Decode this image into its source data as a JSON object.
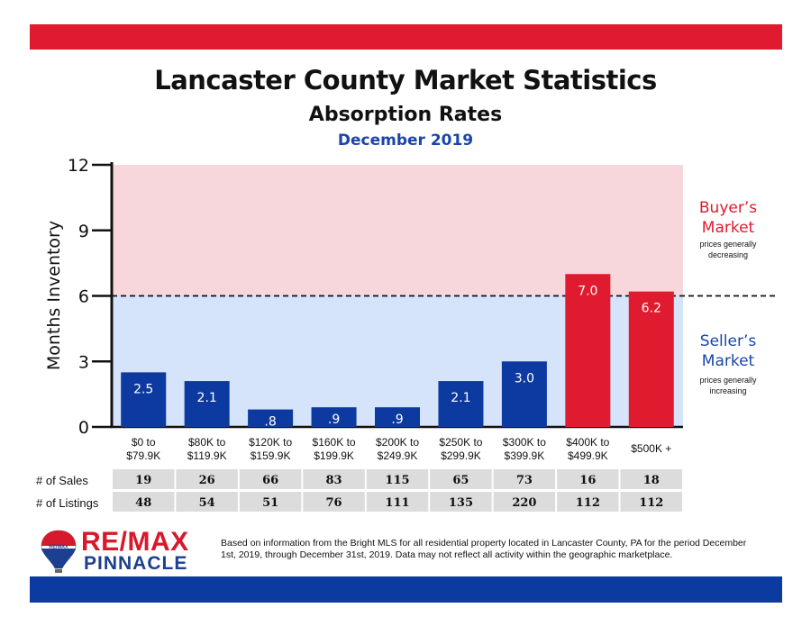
{
  "header": {
    "title": "Lancaster County Market Statistics",
    "subtitle": "Absorption Rates",
    "date": "December 2019"
  },
  "colors": {
    "brand_red": "#e01b2f",
    "brand_blue": "#0b3ba1",
    "buyers_zone": "#f8d7dc",
    "sellers_zone": "#d5e3fb",
    "bar_blue": "#0d3aa0",
    "bar_red": "#e01b2f"
  },
  "chart_data": {
    "type": "bar",
    "ylabel": "Months Inventory",
    "ylim": [
      0,
      12
    ],
    "yticks": [
      "0",
      "3",
      "6",
      "9",
      "12"
    ],
    "threshold": 6,
    "categories": [
      [
        "$0 to",
        "$79.9K"
      ],
      [
        "$80K to",
        "$119.9K"
      ],
      [
        "$120K to",
        "$159.9K"
      ],
      [
        "$160K to",
        "$199.9K"
      ],
      [
        "$200K to",
        "$249.9K"
      ],
      [
        "$250K to",
        "$299.9K"
      ],
      [
        "$300K to",
        "$399.9K"
      ],
      [
        "$400K to",
        "$499.9K"
      ],
      [
        "$500K +"
      ]
    ],
    "values": [
      2.5,
      2.1,
      0.8,
      0.9,
      0.9,
      2.1,
      3.0,
      7.0,
      6.2
    ],
    "value_labels": [
      "2.5",
      "2.1",
      ".8",
      ".9",
      ".9",
      "2.1",
      "3.0",
      "7.0",
      "6.2"
    ],
    "zones": {
      "buyers": {
        "title": [
          "Buyer’s",
          "Market"
        ],
        "note": [
          "prices generally",
          "decreasing"
        ]
      },
      "sellers": {
        "title": [
          "Seller’s",
          "Market"
        ],
        "note": [
          "prices generally",
          "increasing"
        ]
      }
    }
  },
  "stats": {
    "sales_label": "# of Sales",
    "listings_label": "# of Listings",
    "sales": [
      "19",
      "26",
      "66",
      "83",
      "115",
      "65",
      "73",
      "16",
      "18"
    ],
    "listings": [
      "48",
      "54",
      "51",
      "76",
      "111",
      "135",
      "220",
      "112",
      "112"
    ]
  },
  "footer": {
    "logo_top": "RE/MAX",
    "logo_bottom": "PINNACLE",
    "balloon_text": "RE/MAX",
    "note": "Based on information from the Bright MLS for all residential property located in Lancaster County, PA for the period December 1st, 2019, through December 31st, 2019.  Data may not reflect all activity within the geographic marketplace."
  }
}
